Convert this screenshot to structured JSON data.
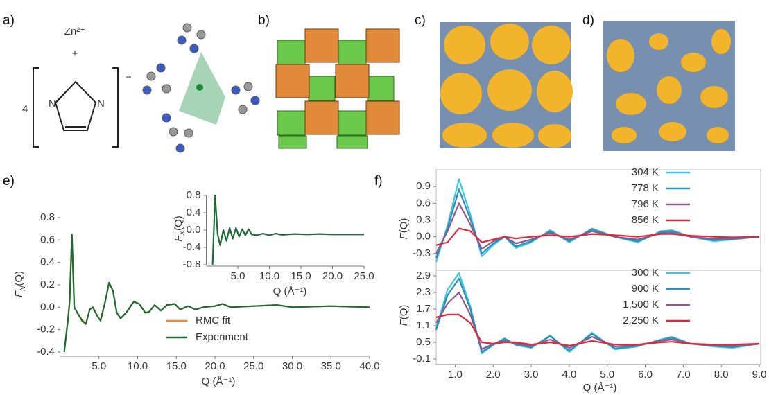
{
  "panels": {
    "labels": [
      "a)",
      "b)",
      "c)",
      "d)",
      "e)",
      "f)"
    ],
    "a": {
      "ion": "Zn²⁺",
      "plus": "+",
      "count": "4",
      "atoms": [
        "N",
        "N"
      ],
      "charge": "−"
    }
  },
  "chart_data": [
    {
      "type": "line",
      "ylabel": [
        "F",
        "N",
        "(Q)"
      ],
      "xlabel": "Q (Å⁻¹)",
      "xlim": [
        0,
        40
      ],
      "ylim": [
        -0.4,
        0.8
      ],
      "xticks": [
        {
          "value": 5,
          "label": "5.0"
        },
        {
          "value": 10,
          "label": "10.0"
        },
        {
          "value": 15,
          "label": "15.0"
        },
        {
          "value": 20,
          "label": "20.0"
        },
        {
          "value": 25,
          "label": "25.0"
        },
        {
          "value": 30,
          "label": "30.0"
        },
        {
          "value": 35,
          "label": "35.0"
        },
        {
          "value": 40,
          "label": "40.0"
        }
      ],
      "yticks": [
        -0.4,
        -0.2,
        {
          "value": 0,
          "label": "0.0"
        },
        0.2,
        0.4,
        0.6,
        0.8
      ],
      "legend": "lower center",
      "x": [
        0.5,
        1.0,
        1.2,
        1.5,
        1.8,
        2.2,
        2.8,
        3.3,
        3.8,
        4.2,
        4.8,
        5.2,
        5.8,
        6.3,
        6.8,
        7.3,
        7.8,
        8.5,
        9.5,
        10.2,
        11,
        11.5,
        12.2,
        13,
        13.8,
        14.8,
        15.5,
        16.5,
        17.5,
        18.5,
        20,
        21,
        22,
        25,
        28,
        30,
        35,
        40
      ],
      "series": [
        {
          "name": "RMC fit",
          "color": "#f08a2c",
          "values": [
            -0.4,
            -0.1,
            0.05,
            0.64,
            0.0,
            -0.05,
            -0.11,
            -0.15,
            -0.02,
            0.0,
            -0.08,
            -0.12,
            0.05,
            0.21,
            0.15,
            -0.05,
            -0.1,
            -0.05,
            0.05,
            0.03,
            -0.05,
            -0.04,
            0.02,
            -0.03,
            0.02,
            0.03,
            -0.02,
            0.01,
            -0.02,
            0.0,
            0.01,
            0.03,
            0.0,
            0.01,
            0.02,
            0.0,
            0.01,
            0.0
          ]
        },
        {
          "name": "Experiment",
          "color": "#1d6b35",
          "values": [
            -0.4,
            -0.1,
            0.05,
            0.65,
            0.0,
            -0.05,
            -0.12,
            -0.15,
            -0.02,
            0.0,
            -0.08,
            -0.12,
            0.05,
            0.22,
            0.15,
            -0.05,
            -0.1,
            -0.05,
            0.05,
            0.03,
            -0.05,
            -0.04,
            0.02,
            -0.03,
            0.02,
            0.03,
            -0.02,
            0.01,
            -0.02,
            0.0,
            0.01,
            0.03,
            0.0,
            0.01,
            0.02,
            0.0,
            0.01,
            0.0
          ]
        }
      ]
    },
    {
      "type": "line",
      "ylabel": [
        "F",
        "X",
        "(Q)"
      ],
      "xlabel": "Q (Å⁻¹)",
      "xlim": [
        0,
        25
      ],
      "ylim": [
        -0.8,
        0.8
      ],
      "xticks": [
        {
          "value": 5,
          "label": "5.0"
        },
        {
          "value": 10,
          "label": "10.0"
        },
        {
          "value": 15,
          "label": "15.0"
        },
        {
          "value": 20,
          "label": "20.0"
        },
        {
          "value": 25,
          "label": "25.0"
        }
      ],
      "yticks": [
        -0.8,
        -0.4,
        {
          "value": 0,
          "label": "0.0"
        },
        0.4,
        0.8
      ],
      "x": [
        1.0,
        1.4,
        1.8,
        2.2,
        2.7,
        3.2,
        3.7,
        4.2,
        4.7,
        5.2,
        5.7,
        6.2,
        6.7,
        7.2,
        8,
        9,
        10,
        11,
        12,
        14,
        16,
        18,
        20,
        22,
        25
      ],
      "color": "#1d6b35",
      "values": [
        -0.8,
        0.8,
        -0.1,
        -0.35,
        0.0,
        -0.25,
        0.05,
        -0.2,
        0.05,
        -0.15,
        0.02,
        -0.12,
        0.02,
        -0.1,
        -0.12,
        -0.08,
        -0.12,
        -0.08,
        -0.11,
        -0.09,
        -0.1,
        -0.09,
        -0.1,
        -0.1,
        -0.1
      ]
    },
    {
      "type": "line",
      "ylabel": [
        "F",
        "",
        "(Q)"
      ],
      "xlim": [
        0.5,
        9.0
      ],
      "ylim": [
        -0.6,
        1.2
      ],
      "yticks": [
        -0.3,
        {
          "value": 0,
          "label": "0.0"
        },
        0.3,
        0.6,
        0.9
      ],
      "legend": "upper right",
      "x": [
        0.5,
        0.8,
        1.1,
        1.4,
        1.7,
        2.0,
        2.3,
        2.6,
        3.0,
        3.5,
        4.0,
        4.6,
        5.2,
        5.8,
        6.4,
        6.7,
        7.2,
        7.8,
        8.3,
        9.0
      ],
      "series": [
        {
          "name": "304 K",
          "color": "#3fc4e0",
          "values": [
            -0.45,
            0.2,
            1.03,
            0.4,
            -0.35,
            -0.15,
            0.0,
            -0.2,
            -0.1,
            0.12,
            -0.1,
            0.15,
            0.0,
            -0.1,
            0.1,
            0.12,
            0.0,
            -0.08,
            -0.05,
            0.0
          ]
        },
        {
          "name": "778 K",
          "color": "#2a8fb8",
          "values": [
            -0.38,
            0.15,
            0.85,
            0.32,
            -0.3,
            -0.12,
            0.0,
            -0.17,
            -0.08,
            0.1,
            -0.08,
            0.13,
            0.0,
            -0.08,
            0.08,
            0.1,
            0.0,
            -0.06,
            -0.04,
            0.0
          ]
        },
        {
          "name": "796 K",
          "color": "#8a5a8a",
          "values": [
            -0.3,
            0.1,
            0.6,
            0.22,
            -0.22,
            -0.08,
            0.0,
            -0.12,
            -0.05,
            0.07,
            -0.05,
            0.1,
            0.0,
            -0.05,
            0.06,
            0.07,
            0.0,
            -0.04,
            -0.03,
            0.0
          ]
        },
        {
          "name": "856 K",
          "color": "#e0283c",
          "values": [
            -0.15,
            -0.1,
            0.15,
            0.1,
            -0.1,
            -0.05,
            0.0,
            -0.03,
            0.0,
            0.03,
            0.0,
            0.05,
            0.03,
            0.0,
            0.05,
            0.05,
            0.02,
            0.0,
            -0.01,
            0.0
          ]
        }
      ]
    },
    {
      "type": "line",
      "ylabel": [
        "F",
        "",
        "(Q)"
      ],
      "xlabel": "Q (Å⁻¹)",
      "xlim": [
        0.5,
        9.0
      ],
      "ylim": [
        -0.3,
        3.1
      ],
      "xticks": [
        {
          "value": 1,
          "label": "1.0"
        },
        {
          "value": 2,
          "label": "2.0"
        },
        {
          "value": 3,
          "label": "3.0"
        },
        {
          "value": 4,
          "label": "4.0"
        },
        {
          "value": 5,
          "label": "5.0"
        },
        {
          "value": 6,
          "label": "6.0"
        },
        {
          "value": 7,
          "label": "7.0"
        },
        {
          "value": 8,
          "label": "8.0"
        },
        {
          "value": 9,
          "label": "9.0"
        }
      ],
      "yticks": [
        -0.1,
        0.5,
        1.1,
        1.7,
        2.3,
        2.9
      ],
      "legend": "upper right",
      "x": [
        0.5,
        0.8,
        1.1,
        1.4,
        1.7,
        2.0,
        2.3,
        2.6,
        3.0,
        3.5,
        4.0,
        4.6,
        5.2,
        5.8,
        6.4,
        6.7,
        7.2,
        7.8,
        8.3,
        9.0
      ],
      "series": [
        {
          "name": "300 K",
          "color": "#3fc4e0",
          "values": [
            1.0,
            2.4,
            3.0,
            1.8,
            0.1,
            0.4,
            0.65,
            0.4,
            0.3,
            0.75,
            0.15,
            0.85,
            0.25,
            0.35,
            0.6,
            0.7,
            0.45,
            0.35,
            0.3,
            0.45
          ]
        },
        {
          "name": "900 K",
          "color": "#2a8fb8",
          "values": [
            0.95,
            2.2,
            2.8,
            1.7,
            0.15,
            0.42,
            0.62,
            0.42,
            0.32,
            0.72,
            0.2,
            0.8,
            0.28,
            0.37,
            0.58,
            0.66,
            0.45,
            0.37,
            0.33,
            0.45
          ]
        },
        {
          "name": "1,500 K",
          "color": "#8a5a8a",
          "values": [
            1.2,
            1.9,
            2.3,
            1.5,
            0.25,
            0.45,
            0.55,
            0.45,
            0.38,
            0.6,
            0.3,
            0.7,
            0.35,
            0.4,
            0.55,
            0.6,
            0.45,
            0.4,
            0.38,
            0.45
          ]
        },
        {
          "name": "2,250 K",
          "color": "#e0283c",
          "values": [
            1.4,
            1.5,
            1.5,
            1.2,
            0.5,
            0.45,
            0.5,
            0.5,
            0.42,
            0.5,
            0.38,
            0.55,
            0.42,
            0.42,
            0.5,
            0.52,
            0.45,
            0.42,
            0.42,
            0.45
          ]
        }
      ]
    }
  ]
}
